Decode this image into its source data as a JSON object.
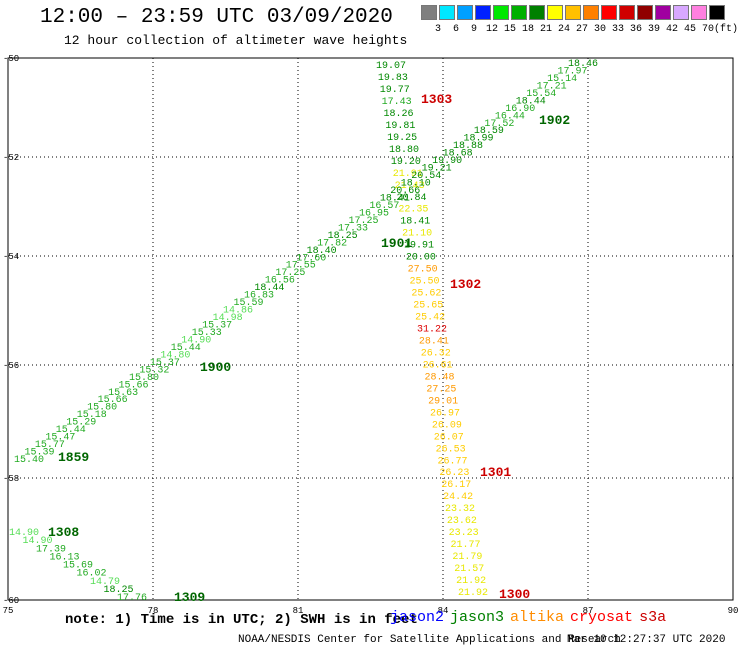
{
  "title": "12:00 – 23:59 UTC 03/09/2020",
  "subtitle": "12 hour collection of altimeter wave heights",
  "legend": [
    {
      "label": "3",
      "color": "#7f7f7f"
    },
    {
      "label": "6",
      "color": "#00e8ff"
    },
    {
      "label": "9",
      "color": "#00a0ff"
    },
    {
      "label": "12",
      "color": "#0020ff"
    },
    {
      "label": "15",
      "color": "#00e800"
    },
    {
      "label": "18",
      "color": "#00b000"
    },
    {
      "label": "21",
      "color": "#008000"
    },
    {
      "label": "24",
      "color": "#ffff00"
    },
    {
      "label": "27",
      "color": "#ffc000"
    },
    {
      "label": "30",
      "color": "#ff8000"
    },
    {
      "label": "33",
      "color": "#ff0000"
    },
    {
      "label": "36",
      "color": "#d00000"
    },
    {
      "label": "39",
      "color": "#900000"
    },
    {
      "label": "42",
      "color": "#a000a0"
    },
    {
      "label": "45",
      "color": "#d8a8ff"
    },
    {
      "label": "70",
      "color": "#ff80e0"
    },
    {
      "label": "(ft)",
      "color": "#000000"
    }
  ],
  "axes": {
    "lon_ticks": [
      "75",
      "78",
      "81",
      "84",
      "87",
      "90"
    ],
    "lat_ticks": [
      "-50",
      "-52",
      "-54",
      "-56",
      "-58",
      "-60"
    ]
  },
  "grid_color": "#000000",
  "passes": [
    {
      "label": "1303",
      "color": "#cc0000"
    },
    {
      "label": "1302",
      "color": "#cc0000"
    },
    {
      "label": "1301",
      "color": "#cc0000"
    },
    {
      "label": "1300",
      "color": "#cc0000"
    },
    {
      "label": "1902",
      "color": "#006600"
    },
    {
      "label": "1901",
      "color": "#006600"
    },
    {
      "label": "1900",
      "color": "#006600"
    },
    {
      "label": "1859",
      "color": "#006600"
    },
    {
      "label": "1308",
      "color": "#006600"
    },
    {
      "label": "1309",
      "color": "#006600"
    }
  ],
  "track_vertical": [
    "19.07",
    "19.83",
    "19.77",
    "17.43",
    "18.26",
    "19.81",
    "19.25",
    "18.80",
    "19.20",
    "21.91",
    "21.43",
    "20.84",
    "22.35",
    "18.41",
    "21.10",
    "19.91",
    "20.00",
    "27.50",
    "25.50",
    "25.62",
    "25.65",
    "25.42",
    "31.22",
    "28.41",
    "26.32",
    "26.61",
    "28.48",
    "27.25",
    "29.01",
    "26.97",
    "26.09",
    "26.07",
    "26.53",
    "26.77",
    "26.23",
    "26.17",
    "24.42",
    "23.32",
    "23.62",
    "23.23",
    "21.77",
    "21.79",
    "21.57",
    "21.92",
    "21.92"
  ],
  "track_diagonal": [
    "18.46",
    "17.97",
    "15.14",
    "17.21",
    "15.54",
    "18.44",
    "16.90",
    "16.44",
    "17.52",
    "18.59",
    "18.99",
    "18.88",
    "18.68",
    "19.90",
    "19.21",
    "20.54",
    "18.10",
    "20.66",
    "18.41",
    "16.57",
    "16.95",
    "17.25",
    "17.33",
    "18.25",
    "17.82",
    "18.40",
    "17.60",
    "17.55",
    "17.25",
    "16.56",
    "18.44",
    "16.83",
    "15.59",
    "14.86",
    "14.98",
    "15.37",
    "15.33",
    "14.90",
    "15.44",
    "14.80",
    "15.37",
    "15.32",
    "15.80",
    "15.66",
    "15.63",
    "15.66",
    "15.80",
    "15.18",
    "15.29",
    "15.44",
    "15.47",
    "15.77",
    "15.39",
    "15.40"
  ],
  "track_lower": [
    "14.90",
    "14.90",
    "17.39",
    "16.13",
    "15.69",
    "16.02",
    "14.79",
    "18.25",
    "17.76"
  ],
  "footer_note": "note:  1) Time is in UTC;  2) SWH is in feet",
  "satellites": [
    {
      "name": "jason2",
      "color": "#0000ff"
    },
    {
      "name": "jason3",
      "color": "#008000"
    },
    {
      "name": "altika",
      "color": "#ff8c00"
    },
    {
      "name": "cryosat",
      "color": "#ff0000"
    },
    {
      "name": "s3a",
      "color": "#cc0000"
    }
  ],
  "credit": "NOAA/NESDIS Center for Satellite Applications and Research",
  "credit_date": "Mar 10 12:27:37 UTC 2020"
}
